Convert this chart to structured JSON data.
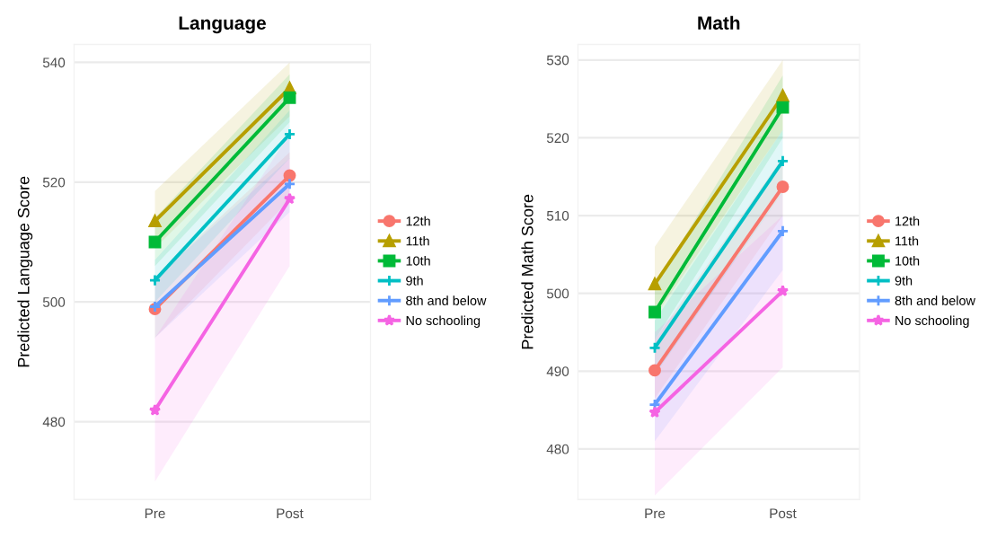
{
  "chart_data": [
    {
      "type": "line",
      "title": "Language",
      "ylabel": "Predicted Language Score",
      "categories": [
        "Pre",
        "Post"
      ],
      "ylim": [
        467,
        543
      ],
      "yticks": [
        480,
        500,
        520,
        540
      ],
      "grid": "y",
      "legend": "right",
      "series": [
        {
          "name": "12th",
          "color": "#f8766d",
          "marker": "circle",
          "values": [
            498.8,
            521.1
          ],
          "lower": [
            494,
            517
          ],
          "upper": [
            504,
            525
          ]
        },
        {
          "name": "11th",
          "color": "#b79f00",
          "marker": "triangle",
          "values": [
            513.5,
            535.7
          ],
          "lower": [
            509,
            531
          ],
          "upper": [
            518.5,
            540
          ]
        },
        {
          "name": "10th",
          "color": "#00ba38",
          "marker": "square",
          "values": [
            510,
            534.1
          ],
          "lower": [
            506,
            530
          ],
          "upper": [
            514,
            538
          ]
        },
        {
          "name": "9th",
          "color": "#00bfc4",
          "marker": "cross",
          "values": [
            503.6,
            528
          ],
          "lower": [
            500,
            524
          ],
          "upper": [
            507,
            532
          ]
        },
        {
          "name": "8th and below",
          "color": "#619cff",
          "marker": "cross",
          "values": [
            499.2,
            519.7
          ],
          "lower": [
            494,
            515
          ],
          "upper": [
            504,
            524
          ]
        },
        {
          "name": "No schooling",
          "color": "#f564e3",
          "marker": "star",
          "values": [
            481.9,
            517.2
          ],
          "lower": [
            470,
            506
          ],
          "upper": [
            494,
            528
          ]
        }
      ]
    },
    {
      "type": "line",
      "title": "Math",
      "ylabel": "Predicted Math Score",
      "categories": [
        "Pre",
        "Post"
      ],
      "ylim": [
        473.5,
        532
      ],
      "yticks": [
        480,
        490,
        500,
        510,
        520,
        530
      ],
      "grid": "y",
      "legend": "right",
      "series": [
        {
          "name": "12th",
          "color": "#f8766d",
          "marker": "circle",
          "values": [
            490.1,
            513.7
          ],
          "lower": [
            486.5,
            510
          ],
          "upper": [
            494,
            517.5
          ]
        },
        {
          "name": "11th",
          "color": "#b79f00",
          "marker": "triangle",
          "values": [
            501.2,
            525.4
          ],
          "lower": [
            497,
            521
          ],
          "upper": [
            506,
            530
          ]
        },
        {
          "name": "10th",
          "color": "#00ba38",
          "marker": "square",
          "values": [
            497.6,
            523.9
          ],
          "lower": [
            494,
            520
          ],
          "upper": [
            501,
            528
          ]
        },
        {
          "name": "9th",
          "color": "#00bfc4",
          "marker": "cross",
          "values": [
            493,
            517
          ],
          "lower": [
            489.5,
            513
          ],
          "upper": [
            496.5,
            521
          ]
        },
        {
          "name": "8th and below",
          "color": "#619cff",
          "marker": "cross",
          "values": [
            485.7,
            508
          ],
          "lower": [
            481,
            503
          ],
          "upper": [
            490,
            513
          ]
        },
        {
          "name": "No schooling",
          "color": "#f564e3",
          "marker": "star",
          "values": [
            484.7,
            500.3
          ],
          "lower": [
            474,
            490.5
          ],
          "upper": [
            495,
            510
          ]
        }
      ]
    }
  ]
}
